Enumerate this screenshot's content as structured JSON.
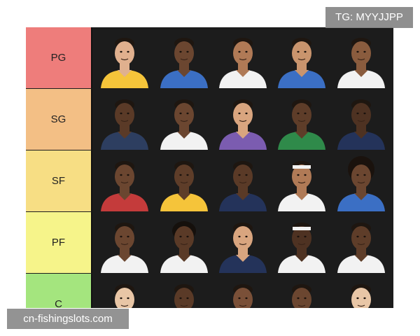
{
  "tag": "TG: MYYJJPP",
  "watermark": "cn-fishingslots.com",
  "tiers": [
    {
      "label": "PG",
      "color": "#ee7d7b"
    },
    {
      "label": "SG",
      "color": "#f3bf85"
    },
    {
      "label": "SF",
      "color": "#f7de84"
    },
    {
      "label": "PF",
      "color": "#f6f48a"
    },
    {
      "label": "C",
      "color": "#a4e57e"
    }
  ],
  "jerseys": [
    [
      "#f5c43a",
      "#3b6fc4",
      "#f2f2f2",
      "#3b6fc4",
      "#f2f2f2"
    ],
    [
      "#2d3e60",
      "#f2f2f2",
      "#7b5cb0",
      "#2f8a4a",
      "#24335a"
    ],
    [
      "#c43b3b",
      "#f5c43a",
      "#24335a",
      "#f2f2f2",
      "#3b6fc4"
    ],
    [
      "#f2f2f2",
      "#f2f2f2",
      "#24335a",
      "#f2f2f2",
      "#f2f2f2"
    ],
    [
      "#c43b3b",
      "#f2f2f2",
      "#3b6fc4",
      "#24335a",
      "#3b6fc4"
    ]
  ],
  "skin": [
    [
      "#e0b08e",
      "#6b4630",
      "#b07a56",
      "#c9946d",
      "#8a5c3e"
    ],
    [
      "#5a3a27",
      "#6b4630",
      "#d9a57f",
      "#5e3d29",
      "#4e3222"
    ],
    [
      "#6b4630",
      "#5e3d29",
      "#5a3a27",
      "#b07a56",
      "#6b4630"
    ],
    [
      "#6b4630",
      "#5a3a27",
      "#d9a57f",
      "#4e3222",
      "#5e3d29"
    ],
    [
      "#e8c6a6",
      "#5a3a27",
      "#7a5038",
      "#6b4630",
      "#e8c6a6"
    ]
  ]
}
